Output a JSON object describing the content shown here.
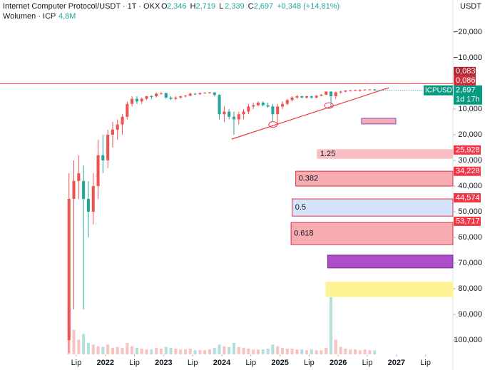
{
  "header": {
    "title": "Internet Computer Protocol/USDT · 1T · OKX",
    "ohlc": [
      {
        "key": "O",
        "value": "2,346"
      },
      {
        "key": "H",
        "value": "2,719"
      },
      {
        "key": "L",
        "value": "2,339"
      },
      {
        "key": "C",
        "value": "2,697"
      }
    ],
    "change": "+0,348 (+14,81%)",
    "volume_label": "Wolumen · ICP",
    "volume_value": "4,8M",
    "currency": "USDT"
  },
  "chart_data": {
    "type": "candlestick",
    "inverted": true,
    "grid": false,
    "up_color": "#26a69a",
    "down_color": "#ef5350",
    "xlim": [
      2020.19,
      2027.97
    ],
    "ylim": [
      -32.5,
      105.55
    ],
    "xticks": [
      {
        "value": 2021.5,
        "label": "Lip"
      },
      2022,
      {
        "value": 2022.5,
        "label": "Lip"
      },
      2023,
      {
        "value": 2023.5,
        "label": "Lip"
      },
      2024,
      {
        "value": 2024.5,
        "label": "Lip"
      },
      2025,
      {
        "value": 2025.5,
        "label": "Lip"
      },
      2026,
      {
        "value": 2026.5,
        "label": "Lip"
      },
      2027,
      {
        "value": 2027.5,
        "label": "Lip"
      }
    ],
    "yticks": [
      {
        "value": -20,
        "label": "−20,000"
      },
      {
        "value": -10,
        "label": "−10,000"
      },
      {
        "value": 10,
        "label": "10,000"
      },
      {
        "value": 20,
        "label": "20,000"
      },
      {
        "value": 30,
        "label": "30,000"
      },
      {
        "value": 40,
        "label": "40,000"
      },
      {
        "value": 50,
        "label": "50,000"
      },
      {
        "value": 60,
        "label": "60,000"
      },
      {
        "value": 70,
        "label": "70,000"
      },
      {
        "value": 80,
        "label": "80,000"
      },
      {
        "value": 90,
        "label": "90,000"
      },
      {
        "value": 100,
        "label": "100,000"
      }
    ],
    "x": [
      2021.375,
      2021.458,
      2021.542,
      2021.625,
      2021.708,
      2021.792,
      2021.875,
      2021.958,
      2022.042,
      2022.125,
      2022.208,
      2022.292,
      2022.375,
      2022.458,
      2022.542,
      2022.625,
      2022.708,
      2022.792,
      2022.875,
      2022.958,
      2023.042,
      2023.125,
      2023.208,
      2023.292,
      2023.375,
      2023.458,
      2023.542,
      2023.625,
      2023.708,
      2023.792,
      2023.875,
      2023.958,
      2024.042,
      2024.125,
      2024.208,
      2024.292,
      2024.375,
      2024.458,
      2024.542,
      2024.625,
      2024.708,
      2024.792,
      2024.875,
      2024.958,
      2025.042,
      2025.125,
      2025.208,
      2025.292,
      2025.375,
      2025.458,
      2025.542,
      2025.625,
      2025.708,
      2025.792,
      2025.875,
      2025.958,
      2026.042,
      2026.125,
      2026.208,
      2026.292,
      2026.375,
      2026.458,
      2026.542,
      2026.625
    ],
    "open": [
      100,
      45,
      38,
      38,
      45,
      50,
      40,
      28,
      30,
      20,
      18,
      16,
      13,
      8,
      6,
      7,
      6,
      5,
      5,
      4,
      3.8,
      5.5,
      6,
      5.5,
      5,
      4.8,
      4,
      4.2,
      3.8,
      3.6,
      3.5,
      4.5,
      12,
      11,
      13,
      14,
      12,
      11,
      9,
      8.5,
      7.5,
      8.5,
      9,
      12,
      9,
      8,
      6.5,
      5.5,
      5,
      5.5,
      5,
      5.5,
      4.8,
      4.4,
      3.2,
      5,
      3.5,
      3.2,
      2.8,
      2.7,
      2.6,
      2.5,
      2.4,
      2.346
    ],
    "high": [
      105,
      88,
      45,
      88,
      60,
      55,
      45,
      35,
      33,
      25,
      22,
      20,
      14,
      9,
      8,
      8,
      6.5,
      6,
      5.5,
      4.5,
      6,
      6.5,
      6.5,
      6,
      5.5,
      5,
      4.5,
      4.5,
      4,
      4,
      5,
      14,
      15,
      14,
      20,
      16,
      14,
      12,
      10,
      9,
      9,
      9.5,
      15,
      16,
      10,
      8.5,
      7,
      6,
      5.8,
      6,
      6,
      5.8,
      5,
      4.6,
      9,
      6,
      4,
      3.5,
      3.2,
      3,
      3.2,
      2.8,
      2.6,
      2.719
    ],
    "low": [
      35,
      30,
      28,
      32,
      38,
      35,
      22,
      20,
      18,
      15,
      14,
      12,
      7,
      5,
      5,
      5.5,
      4.8,
      4.5,
      3.5,
      3.5,
      3.6,
      5,
      5,
      4.8,
      4.5,
      3.6,
      3.8,
      3.5,
      3.4,
      3.3,
      3.4,
      4.2,
      9,
      10,
      11,
      11,
      10,
      8,
      7.5,
      7,
      7,
      7.5,
      8,
      8,
      7,
      6,
      5,
      4.5,
      4.8,
      4.8,
      4.8,
      4.5,
      4.2,
      3,
      3,
      3.2,
      2.8,
      2.6,
      2.5,
      2.4,
      2.3,
      2.3,
      2.2,
      2.339
    ],
    "close": [
      45,
      38,
      35,
      45,
      50,
      40,
      28,
      30,
      20,
      18,
      16,
      13,
      8,
      6,
      7,
      6,
      5,
      5,
      4,
      3.8,
      5.5,
      6,
      5.5,
      5,
      4.8,
      4,
      4.2,
      3.8,
      3.6,
      3.5,
      4.5,
      12,
      11,
      13,
      14,
      12,
      11,
      9,
      8.5,
      7.5,
      8.5,
      9,
      12,
      9,
      8,
      6.5,
      5.5,
      5,
      5.5,
      5,
      5.5,
      4.8,
      4.4,
      3.2,
      5,
      3.5,
      3.2,
      2.8,
      2.7,
      2.6,
      2.5,
      2.4,
      2.35,
      2.697
    ],
    "volume": [
      60,
      30,
      18,
      25,
      14,
      12,
      10,
      9,
      12,
      8,
      9,
      8,
      14,
      10,
      8,
      7,
      6,
      6,
      8,
      7,
      9,
      8,
      7,
      6,
      6,
      7,
      5,
      5,
      5,
      6,
      8,
      12,
      10,
      9,
      14,
      9,
      8,
      7,
      6,
      6,
      6,
      7,
      12,
      10,
      8,
      7,
      7,
      6,
      6,
      5,
      6,
      5,
      5,
      8,
      70,
      18,
      9,
      7,
      6,
      6,
      5,
      6,
      5,
      4.8
    ],
    "trendline": {
      "x": [
        2024.17,
        2026.87
      ],
      "y": [
        21.7,
        1.7
      ],
      "color": "#f23645"
    },
    "circles": {
      "x": [
        2024.88,
        2025.84
      ],
      "y": [
        16,
        8.6
      ]
    },
    "hline": {
      "value": 0.086,
      "color": "#f23645"
    },
    "price_tags": [
      {
        "value": 0.083,
        "label": "0,083"
      },
      {
        "value": 0.086,
        "label": "0,086"
      }
    ],
    "zones": [
      {
        "range": [
          13.6,
          15.8
        ],
        "x0": 2026.4,
        "x1": 2026.99,
        "fill": "#f7a1aa",
        "stroke": "#7b4fd6"
      },
      {
        "label": "1.25",
        "range": [
          25.8,
          29.2
        ],
        "x0": 2025.64,
        "fill": "#f9b8bd",
        "stroke": "#f9b8bd"
      },
      {
        "label": "0.382",
        "range": [
          34.2,
          40.0
        ],
        "x0": 2025.27,
        "fill": "#f5a3a9",
        "stroke": "#e03040"
      },
      {
        "label": "0.5",
        "range": [
          45.0,
          51.7
        ],
        "x0": 2025.21,
        "fill": "#cfe0fa",
        "stroke": "#e03040"
      },
      {
        "label": "0.618",
        "range": [
          54.2,
          62.8
        ],
        "x0": 2025.19,
        "fill": "#f5a3a9",
        "stroke": "#e03040"
      },
      {
        "range": [
          66.9,
          71.9
        ],
        "x0": 2025.82,
        "fill": "#a23bc2",
        "stroke": "#7b2a96"
      },
      {
        "range": [
          77.5,
          83.1
        ],
        "x0": 2025.79,
        "fill": "#fdf28a",
        "stroke": "#fdf28a"
      }
    ],
    "axis_labels": [
      {
        "value": 25.928,
        "label": "25,928"
      },
      {
        "value": 34.228,
        "label": "34,228"
      },
      {
        "value": 44.574,
        "label": "44,574"
      },
      {
        "value": 53.717,
        "label": "53,717"
      }
    ],
    "last": {
      "name": "ICPUSDT",
      "value": 2.697,
      "label": "2,697",
      "countdown": "1d 17h",
      "color": "#089981"
    }
  }
}
